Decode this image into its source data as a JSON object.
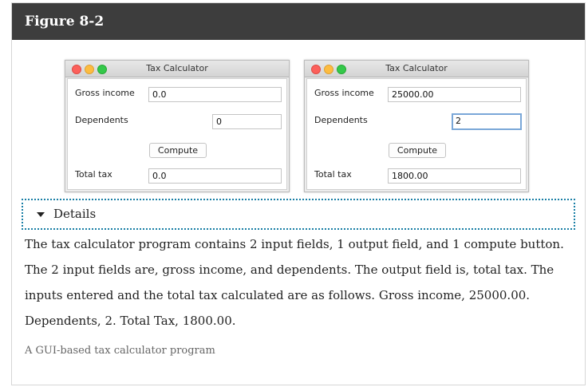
{
  "figure": {
    "title": "Figure 8-2",
    "header_color": "#3d3d3d"
  },
  "windows": [
    {
      "title": "Tax Calculator",
      "gross_income_label": "Gross income",
      "gross_income_value": "0.0",
      "dependents_label": "Dependents",
      "dependents_value": "0",
      "compute_label": "Compute",
      "total_tax_label": "Total tax",
      "total_tax_value": "0.0"
    },
    {
      "title": "Tax Calculator",
      "gross_income_label": "Gross income",
      "gross_income_value": "25000.00",
      "dependents_label": "Dependents",
      "dependents_value": "2",
      "compute_label": "Compute",
      "total_tax_label": "Total tax",
      "total_tax_value": "1800.00"
    }
  ],
  "details": {
    "label": "Details",
    "icon": "triangle-down-icon",
    "text": "The tax calculator program contains 2 input fields, 1 output field, and 1 compute button. The 2 input fields are, gross income, and dependents. The output field is, total tax. The inputs entered and the total tax calculated are as follows. Gross income, 25000.00. Dependents, 2. Total Tax, 1800.00."
  },
  "caption": "A GUI-based tax calculator program",
  "colors": {
    "focus_ring": "#7aa7d8",
    "details_border": "#1a7fa6",
    "traffic_red": "#fc605b",
    "traffic_yellow": "#fdbc40",
    "traffic_green": "#34c84a"
  }
}
